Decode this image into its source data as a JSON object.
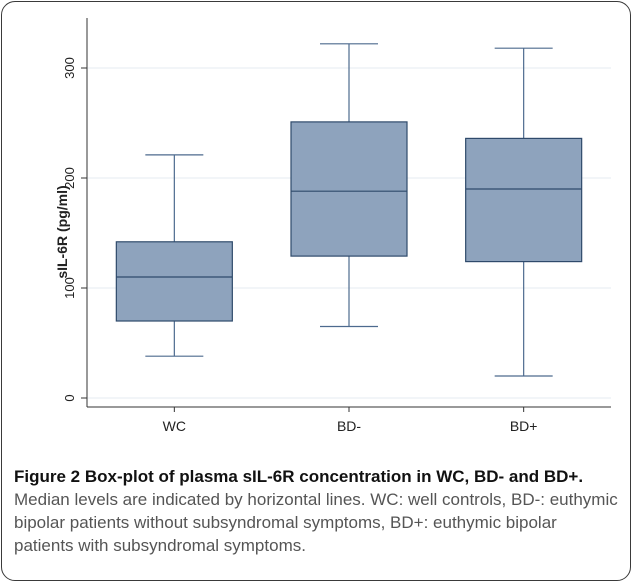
{
  "chart_data": {
    "type": "box",
    "ylabel": "sIL-6R (pg/ml)",
    "xlabel": "",
    "ylim": [
      -10,
      335
    ],
    "yticks": [
      0,
      100,
      200,
      300
    ],
    "grid": true,
    "categories": [
      "WC",
      "BD-",
      "BD+"
    ],
    "boxes": [
      {
        "label": "WC",
        "whisker_low": 38,
        "q1": 70,
        "median": 110,
        "q3": 142,
        "whisker_high": 221
      },
      {
        "label": "BD-",
        "whisker_low": 65,
        "q1": 129,
        "median": 188,
        "q3": 251,
        "whisker_high": 322
      },
      {
        "label": "BD+",
        "whisker_low": 20,
        "q1": 124,
        "median": 190,
        "q3": 236,
        "whisker_high": 318
      }
    ],
    "colors": {
      "box_fill": "#8ea3bd",
      "box_edge": "#2f4a6b",
      "whisker": "#4d6a8e",
      "grid": "#e6ebf0"
    }
  },
  "caption": {
    "title": "Figure 2 Box-plot of plasma sIL-6R concentration in WC, BD- and BD+.",
    "text": " Median levels are indicated by horizontal lines. WC: well controls, BD-: euthymic bipolar patients without subsyndromal symptoms, BD+: euthymic bipolar patients with subsyndromal symptoms."
  }
}
